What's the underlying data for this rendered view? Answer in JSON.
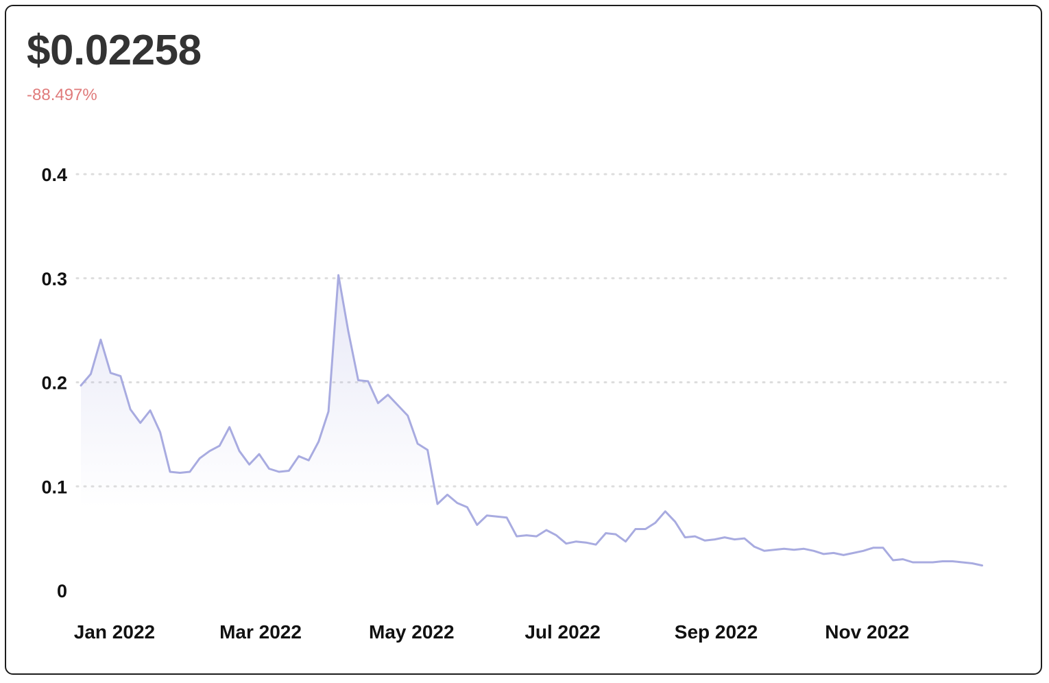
{
  "header": {
    "price": "$0.02258",
    "change": "-88.497%"
  },
  "colors": {
    "line": "#a8abe0",
    "negative": "#e07b7b",
    "grid": "#dddddd"
  },
  "chart_data": {
    "type": "area",
    "ylim": [
      0,
      0.4
    ],
    "yticks": [
      "0.4",
      "0.3",
      "0.2",
      "0.1",
      "0"
    ],
    "ytick_values": [
      0.4,
      0.3,
      0.2,
      0.1,
      0
    ],
    "xlim": [
      "2021-12-19",
      "2022-12-27"
    ],
    "xticks": [
      {
        "label": "Jan 2022",
        "date": "2022-01-01"
      },
      {
        "label": "Mar 2022",
        "date": "2022-03-01"
      },
      {
        "label": "May 2022",
        "date": "2022-05-01"
      },
      {
        "label": "Jul 2022",
        "date": "2022-07-01"
      },
      {
        "label": "Sep 2022",
        "date": "2022-09-01"
      },
      {
        "label": "Nov 2022",
        "date": "2022-11-01"
      }
    ],
    "grid": true,
    "points": [
      [
        "2021-12-19",
        0.197
      ],
      [
        "2021-12-23",
        0.208
      ],
      [
        "2021-12-27",
        0.241
      ],
      [
        "2021-12-31",
        0.209
      ],
      [
        "2022-01-04",
        0.206
      ],
      [
        "2022-01-08",
        0.174
      ],
      [
        "2022-01-12",
        0.161
      ],
      [
        "2022-01-16",
        0.173
      ],
      [
        "2022-01-20",
        0.152
      ],
      [
        "2022-01-24",
        0.114
      ],
      [
        "2022-01-28",
        0.113
      ],
      [
        "2022-02-01",
        0.114
      ],
      [
        "2022-02-05",
        0.127
      ],
      [
        "2022-02-09",
        0.134
      ],
      [
        "2022-02-13",
        0.139
      ],
      [
        "2022-02-17",
        0.157
      ],
      [
        "2022-02-21",
        0.134
      ],
      [
        "2022-02-25",
        0.121
      ],
      [
        "2022-03-01",
        0.131
      ],
      [
        "2022-03-05",
        0.117
      ],
      [
        "2022-03-09",
        0.114
      ],
      [
        "2022-03-13",
        0.115
      ],
      [
        "2022-03-17",
        0.129
      ],
      [
        "2022-03-21",
        0.125
      ],
      [
        "2022-03-25",
        0.143
      ],
      [
        "2022-03-29",
        0.172
      ],
      [
        "2022-04-02",
        0.303
      ],
      [
        "2022-04-06",
        0.249
      ],
      [
        "2022-04-10",
        0.202
      ],
      [
        "2022-04-14",
        0.201
      ],
      [
        "2022-04-18",
        0.18
      ],
      [
        "2022-04-22",
        0.188
      ],
      [
        "2022-04-26",
        0.178
      ],
      [
        "2022-04-30",
        0.168
      ],
      [
        "2022-05-04",
        0.141
      ],
      [
        "2022-05-08",
        0.135
      ],
      [
        "2022-05-12",
        0.083
      ],
      [
        "2022-05-16",
        0.092
      ],
      [
        "2022-05-20",
        0.084
      ],
      [
        "2022-05-24",
        0.08
      ],
      [
        "2022-05-28",
        0.063
      ],
      [
        "2022-06-01",
        0.072
      ],
      [
        "2022-06-05",
        0.071
      ],
      [
        "2022-06-09",
        0.07
      ],
      [
        "2022-06-13",
        0.052
      ],
      [
        "2022-06-17",
        0.053
      ],
      [
        "2022-06-21",
        0.052
      ],
      [
        "2022-06-25",
        0.058
      ],
      [
        "2022-06-29",
        0.053
      ],
      [
        "2022-07-03",
        0.045
      ],
      [
        "2022-07-07",
        0.047
      ],
      [
        "2022-07-11",
        0.046
      ],
      [
        "2022-07-15",
        0.044
      ],
      [
        "2022-07-19",
        0.055
      ],
      [
        "2022-07-23",
        0.054
      ],
      [
        "2022-07-27",
        0.047
      ],
      [
        "2022-07-31",
        0.059
      ],
      [
        "2022-08-04",
        0.059
      ],
      [
        "2022-08-08",
        0.065
      ],
      [
        "2022-08-12",
        0.076
      ],
      [
        "2022-08-16",
        0.066
      ],
      [
        "2022-08-20",
        0.051
      ],
      [
        "2022-08-24",
        0.052
      ],
      [
        "2022-08-28",
        0.048
      ],
      [
        "2022-09-01",
        0.049
      ],
      [
        "2022-09-05",
        0.051
      ],
      [
        "2022-09-09",
        0.049
      ],
      [
        "2022-09-13",
        0.05
      ],
      [
        "2022-09-17",
        0.042
      ],
      [
        "2022-09-21",
        0.038
      ],
      [
        "2022-09-25",
        0.039
      ],
      [
        "2022-09-29",
        0.04
      ],
      [
        "2022-10-03",
        0.039
      ],
      [
        "2022-10-07",
        0.04
      ],
      [
        "2022-10-11",
        0.038
      ],
      [
        "2022-10-15",
        0.035
      ],
      [
        "2022-10-19",
        0.036
      ],
      [
        "2022-10-23",
        0.034
      ],
      [
        "2022-10-27",
        0.036
      ],
      [
        "2022-10-31",
        0.038
      ],
      [
        "2022-11-04",
        0.041
      ],
      [
        "2022-11-08",
        0.041
      ],
      [
        "2022-11-12",
        0.029
      ],
      [
        "2022-11-16",
        0.03
      ],
      [
        "2022-11-20",
        0.027
      ],
      [
        "2022-11-24",
        0.027
      ],
      [
        "2022-11-28",
        0.027
      ],
      [
        "2022-12-02",
        0.028
      ],
      [
        "2022-12-06",
        0.028
      ],
      [
        "2022-12-10",
        0.027
      ],
      [
        "2022-12-14",
        0.026
      ],
      [
        "2022-12-18",
        0.024
      ]
    ]
  }
}
